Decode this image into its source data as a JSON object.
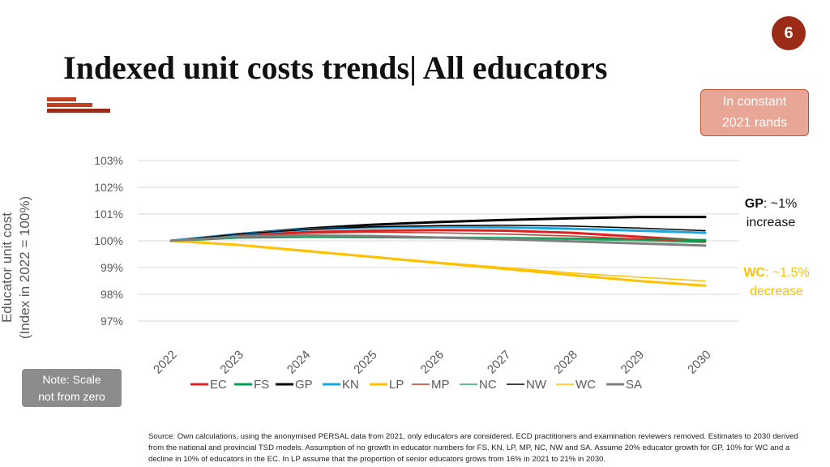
{
  "page_number": "6",
  "title": "Indexed unit costs trends| All educators",
  "callout": {
    "line1": "In constant",
    "line2": "2021 rands"
  },
  "note": {
    "line1": "Note: Scale",
    "line2": "not from zero"
  },
  "annotations": {
    "gp": {
      "key": "GP",
      "rest": ": ~1%",
      "line2": "increase"
    },
    "wc": {
      "key": "WC",
      "rest": ": ~1.5%",
      "line2": "decrease"
    }
  },
  "source": "Source: Own calculations, using the anonymised PERSAL data from 2021, only educators are considered. ECD practitioners and examination reviewers removed. Estimates to 2030 derived from the national and provincial TSD models. Assumption of no growth in educator numbers for FS, KN, LP, MP, NC, NW and SA. Assume 20% educator growth for GP, 10% for WC and a decline in 10% of educators in the EC. In LP assume that the proportion of senior educators grows from 16% in 2021 to 21% in 2030.",
  "colors": {
    "accent": "#9b2b17",
    "callout_bg": "#e8a796",
    "wc_annotation": "#ffc000"
  },
  "chart_data": {
    "type": "line",
    "x": [
      "2022",
      "2023",
      "2024",
      "2025",
      "2026",
      "2027",
      "2028",
      "2029",
      "2030"
    ],
    "ylabel": [
      "Educator unit cost",
      "(Index in 2022 = 100%)"
    ],
    "ylim": [
      97,
      103
    ],
    "yticks": [
      "97%",
      "98%",
      "99%",
      "100%",
      "101%",
      "102%",
      "103%"
    ],
    "grid": true,
    "legend_position": "bottom",
    "series": [
      {
        "name": "EC",
        "color": "#e02020",
        "width": 3,
        "values": [
          100,
          100.2,
          100.32,
          100.38,
          100.4,
          100.38,
          100.3,
          100.15,
          100.0
        ]
      },
      {
        "name": "FS",
        "color": "#00a050",
        "width": 3,
        "values": [
          100,
          100.12,
          100.15,
          100.14,
          100.12,
          100.1,
          100.08,
          100.05,
          100.02
        ]
      },
      {
        "name": "GP",
        "color": "#000000",
        "width": 3,
        "values": [
          100,
          100.25,
          100.45,
          100.6,
          100.7,
          100.78,
          100.84,
          100.89,
          100.89
        ]
      },
      {
        "name": "KN",
        "color": "#1aa7e0",
        "width": 3,
        "values": [
          100,
          100.25,
          100.42,
          100.5,
          100.52,
          100.5,
          100.45,
          100.38,
          100.3
        ]
      },
      {
        "name": "LP",
        "color": "#ffc000",
        "width": 3,
        "values": [
          100,
          99.85,
          99.62,
          99.4,
          99.17,
          98.95,
          98.72,
          98.5,
          98.32
        ]
      },
      {
        "name": "MP",
        "color": "#c0392b",
        "width": 1.5,
        "values": [
          100,
          100.18,
          100.28,
          100.32,
          100.3,
          100.25,
          100.18,
          100.07,
          99.95
        ]
      },
      {
        "name": "NC",
        "color": "#2ea86b",
        "width": 1.5,
        "values": [
          100,
          100.17,
          100.2,
          100.18,
          100.14,
          100.1,
          100.05,
          100.0,
          99.93
        ]
      },
      {
        "name": "NW",
        "color": "#000000",
        "width": 1.5,
        "values": [
          100,
          100.25,
          100.42,
          100.52,
          100.57,
          100.58,
          100.55,
          100.48,
          100.38
        ]
      },
      {
        "name": "WC",
        "color": "#ffc000",
        "width": 1.5,
        "values": [
          100,
          99.86,
          99.65,
          99.42,
          99.2,
          99.0,
          98.8,
          98.64,
          98.5
        ]
      },
      {
        "name": "SA",
        "color": "#808080",
        "width": 3,
        "values": [
          100,
          100.15,
          100.2,
          100.18,
          100.12,
          100.06,
          99.98,
          99.9,
          99.82
        ]
      }
    ]
  }
}
